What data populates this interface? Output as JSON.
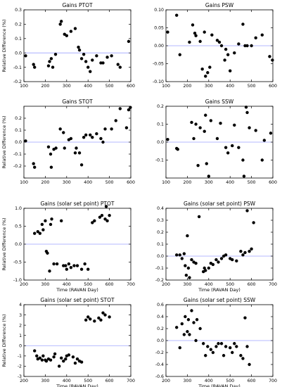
{
  "chart_data": [
    {
      "type": "scatter",
      "title": "Gains  PTOT",
      "xlabel": "",
      "ylabel": "Relative Difference (%)",
      "xlim": [
        100,
        600
      ],
      "ylim": [
        -0.2,
        0.3
      ],
      "xticks": [
        100,
        200,
        300,
        400,
        500,
        600
      ],
      "yticks": [
        -0.2,
        -0.1,
        0.0,
        0.1,
        0.2,
        0.3
      ],
      "ytick_labels": [
        "-0.2",
        "-0.1",
        "0.0",
        "0.1",
        "0.2",
        "0.3"
      ],
      "reference_line": 0,
      "points": [
        [
          108,
          -0.02
        ],
        [
          145,
          -0.08
        ],
        [
          150,
          -0.1
        ],
        [
          215,
          -0.09
        ],
        [
          220,
          -0.06
        ],
        [
          228,
          -0.04
        ],
        [
          235,
          -0.1
        ],
        [
          248,
          -0.01
        ],
        [
          270,
          0.2
        ],
        [
          275,
          0.22
        ],
        [
          290,
          0.13
        ],
        [
          300,
          0.12
        ],
        [
          320,
          0.15
        ],
        [
          340,
          0.17
        ],
        [
          355,
          0.04
        ],
        [
          360,
          0.02
        ],
        [
          370,
          -0.04
        ],
        [
          380,
          -0.01
        ],
        [
          390,
          -0.06
        ],
        [
          400,
          -0.1
        ],
        [
          410,
          -0.13
        ],
        [
          420,
          -0.05
        ],
        [
          440,
          -0.02
        ],
        [
          460,
          -0.07
        ],
        [
          470,
          -0.07
        ],
        [
          490,
          -0.03
        ],
        [
          510,
          -0.02
        ],
        [
          540,
          -0.08
        ],
        [
          550,
          -0.1
        ],
        [
          590,
          0.08
        ]
      ]
    },
    {
      "type": "scatter",
      "title": "Gains  PSW",
      "xlabel": "",
      "ylabel": "",
      "xlim": [
        100,
        600
      ],
      "ylim": [
        -0.1,
        0.1
      ],
      "xticks": [
        100,
        200,
        300,
        400,
        500,
        600
      ],
      "yticks": [
        -0.1,
        -0.05,
        0.0,
        0.05,
        0.1
      ],
      "ytick_labels": [
        "-0.10",
        "-0.05",
        "0.00",
        "0.05",
        "0.10"
      ],
      "reference_line": 0,
      "points": [
        [
          108,
          0.038
        ],
        [
          150,
          0.085
        ],
        [
          165,
          -0.025
        ],
        [
          210,
          0.01
        ],
        [
          225,
          0.058
        ],
        [
          235,
          0.035
        ],
        [
          240,
          0.028
        ],
        [
          260,
          0.012
        ],
        [
          270,
          -0.065
        ],
        [
          280,
          0.038
        ],
        [
          285,
          -0.085
        ],
        [
          295,
          -0.075
        ],
        [
          305,
          -0.06
        ],
        [
          315,
          0.03
        ],
        [
          340,
          0.015
        ],
        [
          350,
          0.01
        ],
        [
          360,
          0.0
        ],
        [
          375,
          -0.04
        ],
        [
          380,
          -0.01
        ],
        [
          390,
          -0.025
        ],
        [
          400,
          -0.07
        ],
        [
          420,
          -0.02
        ],
        [
          440,
          0.005
        ],
        [
          460,
          0.06
        ],
        [
          470,
          0.0
        ],
        [
          480,
          0.0
        ],
        [
          500,
          0.0
        ],
        [
          520,
          0.022
        ],
        [
          550,
          0.03
        ],
        [
          585,
          -0.03
        ],
        [
          598,
          -0.04
        ]
      ]
    },
    {
      "type": "scatter",
      "title": "Gains  STOT",
      "xlabel": "",
      "ylabel": "Relative Difference (%)",
      "xlim": [
        100,
        600
      ],
      "ylim": [
        -0.3,
        0.3
      ],
      "xticks": [
        100,
        200,
        300,
        400,
        500,
        600
      ],
      "yticks": [
        -0.3,
        -0.2,
        -0.1,
        0.0,
        0.1,
        0.2
      ],
      "ytick_labels": [
        "",
        "-0.2",
        "-0.1",
        "0.0",
        "0.1",
        "0.2"
      ],
      "reference_line": 0,
      "points": [
        [
          108,
          0.01
        ],
        [
          145,
          -0.18
        ],
        [
          150,
          -0.21
        ],
        [
          215,
          -0.04
        ],
        [
          225,
          -0.1
        ],
        [
          228,
          -0.21
        ],
        [
          240,
          -0.06
        ],
        [
          250,
          -0.05
        ],
        [
          270,
          0.11
        ],
        [
          285,
          0.08
        ],
        [
          290,
          -0.05
        ],
        [
          310,
          0.02
        ],
        [
          320,
          0.03
        ],
        [
          340,
          -0.09
        ],
        [
          345,
          -0.05
        ],
        [
          360,
          -0.09
        ],
        [
          370,
          -0.19
        ],
        [
          380,
          0.04
        ],
        [
          390,
          0.06
        ],
        [
          410,
          0.06
        ],
        [
          420,
          0.04
        ],
        [
          440,
          0.07
        ],
        [
          460,
          0.03
        ],
        [
          470,
          0.0
        ],
        [
          480,
          0.11
        ],
        [
          510,
          0.11
        ],
        [
          530,
          0.18
        ],
        [
          550,
          0.28
        ],
        [
          580,
          0.12
        ],
        [
          590,
          0.27
        ],
        [
          598,
          0.29
        ]
      ]
    },
    {
      "type": "scatter",
      "title": "Gains  SSW",
      "xlabel": "",
      "ylabel": "",
      "xlim": [
        100,
        600
      ],
      "ylim": [
        -0.2,
        0.2
      ],
      "xticks": [
        100,
        200,
        300,
        400,
        500,
        600
      ],
      "yticks": [
        -0.2,
        -0.1,
        0.0,
        0.1,
        0.2
      ],
      "ytick_labels": [
        "",
        "-0.1",
        "0.0",
        "0.1",
        "0.2"
      ],
      "reference_line": 0,
      "points": [
        [
          108,
          0.015
        ],
        [
          150,
          -0.035
        ],
        [
          155,
          -0.04
        ],
        [
          220,
          0.11
        ],
        [
          230,
          0.02
        ],
        [
          240,
          0.1
        ],
        [
          250,
          -0.13
        ],
        [
          260,
          0.08
        ],
        [
          280,
          0.06
        ],
        [
          285,
          0.15
        ],
        [
          290,
          -0.12
        ],
        [
          300,
          -0.19
        ],
        [
          310,
          0.12
        ],
        [
          340,
          0.02
        ],
        [
          355,
          0.105
        ],
        [
          380,
          -0.03
        ],
        [
          390,
          -0.06
        ],
        [
          410,
          -0.02
        ],
        [
          420,
          0.095
        ],
        [
          440,
          -0.03
        ],
        [
          460,
          -0.1
        ],
        [
          465,
          -0.19
        ],
        [
          475,
          0.195
        ],
        [
          480,
          0.165
        ],
        [
          490,
          0.08
        ],
        [
          520,
          0.065
        ],
        [
          550,
          -0.1
        ],
        [
          560,
          0.01
        ],
        [
          590,
          0.05
        ]
      ]
    },
    {
      "type": "scatter",
      "title": "Gains  (solar set point)     PTOT",
      "xlabel": "Time  (RAVAN Day)",
      "ylabel": "Relative Difference (%)",
      "xlim": [
        200,
        700
      ],
      "ylim": [
        -1.0,
        1.0
      ],
      "xticks": [
        200,
        300,
        400,
        500,
        600,
        700
      ],
      "yticks": [
        -1.0,
        -0.5,
        0.0,
        0.5,
        1.0
      ],
      "ytick_labels": [
        "-1.0",
        "-0.5",
        "0.0",
        "0.5",
        "1.0"
      ],
      "reference_line": 0,
      "points": [
        [
          250,
          0.3
        ],
        [
          265,
          0.35
        ],
        [
          275,
          0.3
        ],
        [
          285,
          0.55
        ],
        [
          290,
          0.4
        ],
        [
          300,
          0.65
        ],
        [
          305,
          -0.2
        ],
        [
          310,
          -0.25
        ],
        [
          320,
          -0.75
        ],
        [
          325,
          0.55
        ],
        [
          330,
          0.7
        ],
        [
          340,
          -0.55
        ],
        [
          355,
          -0.55
        ],
        [
          375,
          0.65
        ],
        [
          385,
          -0.6
        ],
        [
          395,
          -0.6
        ],
        [
          400,
          -0.7
        ],
        [
          410,
          -0.55
        ],
        [
          420,
          -0.65
        ],
        [
          435,
          -0.6
        ],
        [
          450,
          -0.6
        ],
        [
          470,
          -0.7
        ],
        [
          485,
          -0.55
        ],
        [
          500,
          -0.7
        ],
        [
          520,
          0.6
        ],
        [
          530,
          0.65
        ],
        [
          555,
          0.75
        ],
        [
          565,
          0.8
        ],
        [
          580,
          0.7
        ],
        [
          585,
          1.05
        ],
        [
          590,
          0.65
        ],
        [
          600,
          0.8
        ]
      ]
    },
    {
      "type": "scatter",
      "title": "Gains  (solar set point)     PSW",
      "xlabel": "Time  (RAVAN Day)",
      "ylabel": "",
      "xlim": [
        200,
        700
      ],
      "ylim": [
        -0.2,
        0.4
      ],
      "xticks": [
        200,
        300,
        400,
        500,
        600,
        700
      ],
      "yticks": [
        -0.2,
        -0.1,
        0.0,
        0.1,
        0.2,
        0.3,
        0.4
      ],
      "ytick_labels": [
        "-0.2",
        "-0.1",
        "0.0",
        "0.1",
        "0.2",
        "0.3",
        "0.4"
      ],
      "reference_line": 0,
      "points": [
        [
          250,
          0.01
        ],
        [
          265,
          0.01
        ],
        [
          275,
          -0.02
        ],
        [
          285,
          0.02
        ],
        [
          290,
          -0.08
        ],
        [
          295,
          -0.16
        ],
        [
          300,
          0.17
        ],
        [
          305,
          -0.1
        ],
        [
          310,
          -0.18
        ],
        [
          320,
          -0.03
        ],
        [
          330,
          -0.05
        ],
        [
          340,
          -0.06
        ],
        [
          355,
          0.33
        ],
        [
          375,
          -0.13
        ],
        [
          380,
          -0.1
        ],
        [
          385,
          -0.12
        ],
        [
          400,
          -0.1
        ],
        [
          410,
          -0.06
        ],
        [
          420,
          -0.07
        ],
        [
          435,
          -0.03
        ],
        [
          445,
          -0.05
        ],
        [
          460,
          -0.02
        ],
        [
          470,
          0.0
        ],
        [
          480,
          0.01
        ],
        [
          500,
          -0.02
        ],
        [
          510,
          -0.03
        ],
        [
          530,
          -0.04
        ],
        [
          550,
          0.04
        ],
        [
          560,
          0.01
        ],
        [
          570,
          0.03
        ],
        [
          580,
          0.38
        ],
        [
          590,
          0.04
        ],
        [
          600,
          0.06
        ],
        [
          610,
          0.28
        ]
      ]
    },
    {
      "type": "scatter",
      "title": "Gains  (solar set point)     STOT",
      "xlabel": "Time  (RAVAN Day)",
      "ylabel": "Relative Difference (%)",
      "xlim": [
        200,
        700
      ],
      "ylim": [
        -3,
        4
      ],
      "xticks": [
        200,
        300,
        400,
        500,
        600,
        700
      ],
      "yticks": [
        -3,
        -2,
        -1,
        0,
        1,
        2,
        3,
        4
      ],
      "ytick_labels": [
        "-3",
        "-2",
        "-1",
        "0",
        "1",
        "2",
        "3",
        "4"
      ],
      "reference_line": 0,
      "points": [
        [
          250,
          -0.5
        ],
        [
          260,
          -1.0
        ],
        [
          265,
          -1.3
        ],
        [
          275,
          -1.2
        ],
        [
          285,
          -1.4
        ],
        [
          290,
          -1.0
        ],
        [
          300,
          -1.4
        ],
        [
          305,
          -1.5
        ],
        [
          315,
          -1.3
        ],
        [
          325,
          -1.4
        ],
        [
          340,
          -1.1
        ],
        [
          345,
          -0.8
        ],
        [
          365,
          -2.0
        ],
        [
          375,
          -1.2
        ],
        [
          385,
          -1.5
        ],
        [
          395,
          -1.3
        ],
        [
          400,
          -1.0
        ],
        [
          410,
          -0.9
        ],
        [
          430,
          -1.1
        ],
        [
          440,
          -1.7
        ],
        [
          450,
          -1.3
        ],
        [
          460,
          -1.5
        ],
        [
          470,
          -1.6
        ],
        [
          490,
          2.5
        ],
        [
          500,
          2.8
        ],
        [
          510,
          2.6
        ],
        [
          530,
          2.4
        ],
        [
          550,
          2.7
        ],
        [
          560,
          2.5
        ],
        [
          570,
          3.2
        ],
        [
          580,
          3.0
        ],
        [
          600,
          2.8
        ]
      ]
    },
    {
      "type": "scatter",
      "title": "Gains  (solar set point)     SSW",
      "xlabel": "Time  (RAVAN Day)",
      "ylabel": "",
      "xlim": [
        200,
        700
      ],
      "ylim": [
        -0.6,
        0.6
      ],
      "xticks": [
        200,
        300,
        400,
        500,
        600,
        700
      ],
      "yticks": [
        -0.6,
        -0.4,
        -0.2,
        0.0,
        0.2,
        0.4,
        0.6
      ],
      "ytick_labels": [
        "-0.6",
        "-0.4",
        "-0.2",
        "0.0",
        "0.2",
        "0.4",
        "0.6"
      ],
      "reference_line": 0,
      "points": [
        [
          250,
          0.22
        ],
        [
          265,
          -0.12
        ],
        [
          275,
          0.28
        ],
        [
          285,
          0.1
        ],
        [
          290,
          0.4
        ],
        [
          300,
          0.15
        ],
        [
          305,
          0.35
        ],
        [
          310,
          0.1
        ],
        [
          320,
          0.5
        ],
        [
          330,
          0.3
        ],
        [
          340,
          0.0
        ],
        [
          345,
          0.35
        ],
        [
          360,
          0.2
        ],
        [
          375,
          -0.05
        ],
        [
          385,
          -0.25
        ],
        [
          395,
          -0.1
        ],
        [
          410,
          -0.15
        ],
        [
          420,
          -0.2
        ],
        [
          435,
          -0.1
        ],
        [
          445,
          -0.05
        ],
        [
          460,
          -0.05
        ],
        [
          470,
          -0.25
        ],
        [
          480,
          -0.1
        ],
        [
          500,
          -0.12
        ],
        [
          510,
          -0.2
        ],
        [
          520,
          -0.05
        ],
        [
          530,
          -0.1
        ],
        [
          550,
          -0.25
        ],
        [
          560,
          -0.3
        ],
        [
          570,
          0.38
        ],
        [
          580,
          -0.1
        ],
        [
          590,
          -0.4
        ]
      ]
    }
  ],
  "colors": {
    "points": "#000000",
    "reference_line": "#9da3ff",
    "axes": "#000000",
    "text": "#000000"
  }
}
